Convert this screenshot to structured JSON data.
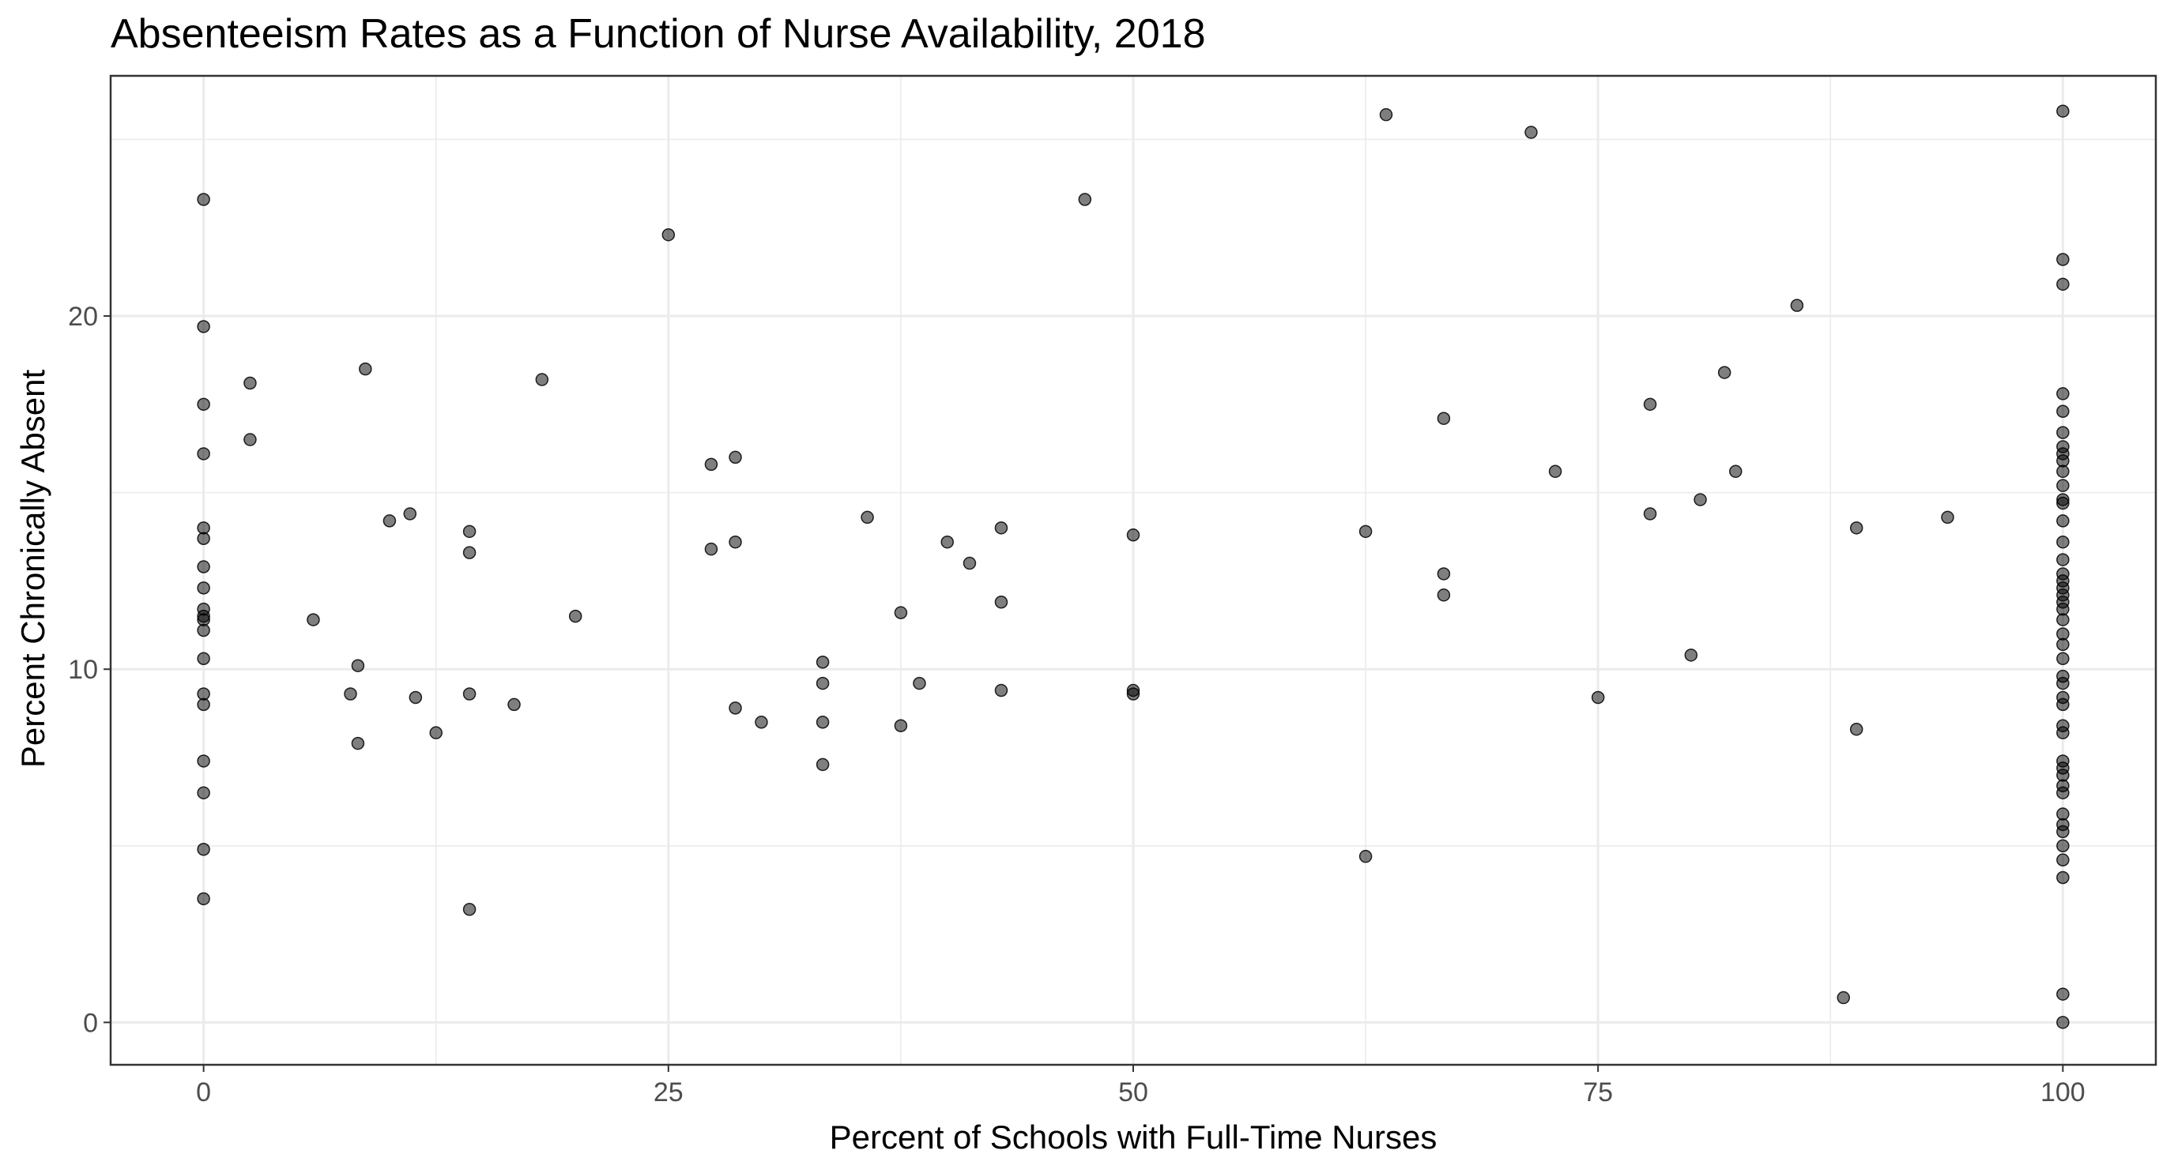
{
  "chart_data": {
    "type": "scatter",
    "title": "Absenteeism Rates as a Function of Nurse Availability, 2018",
    "xlabel": "Percent of Schools with Full-Time Nurses",
    "ylabel": "Percent Chronically Absent",
    "xlim": [
      -5,
      105
    ],
    "ylim": [
      -1.2,
      26.8
    ],
    "x_ticks": [
      0,
      25,
      50,
      75,
      100
    ],
    "x_tick_labels": [
      "0",
      "25",
      "50",
      "75",
      "100"
    ],
    "y_ticks": [
      0,
      10,
      20
    ],
    "y_tick_labels": [
      "0",
      "10",
      "20"
    ],
    "x_minor_grid": [
      12.5,
      37.5,
      62.5,
      87.5
    ],
    "y_minor_grid": [
      5,
      15,
      25
    ],
    "grid": true,
    "legend": "none",
    "point_color": "#000000",
    "point_alpha": 0.5,
    "points": [
      {
        "x": 0,
        "y": 23.3
      },
      {
        "x": 0,
        "y": 19.7
      },
      {
        "x": 0,
        "y": 17.5
      },
      {
        "x": 0,
        "y": 16.1
      },
      {
        "x": 0,
        "y": 14.0
      },
      {
        "x": 0,
        "y": 13.7
      },
      {
        "x": 0,
        "y": 12.9
      },
      {
        "x": 0,
        "y": 12.3
      },
      {
        "x": 0,
        "y": 11.7
      },
      {
        "x": 0,
        "y": 11.5
      },
      {
        "x": 0,
        "y": 11.4
      },
      {
        "x": 0,
        "y": 11.1
      },
      {
        "x": 0,
        "y": 10.3
      },
      {
        "x": 0,
        "y": 9.3
      },
      {
        "x": 0,
        "y": 9.0
      },
      {
        "x": 0,
        "y": 7.4
      },
      {
        "x": 0,
        "y": 6.5
      },
      {
        "x": 0,
        "y": 4.9
      },
      {
        "x": 0,
        "y": 3.5
      },
      {
        "x": 2.5,
        "y": 18.1
      },
      {
        "x": 2.5,
        "y": 16.5
      },
      {
        "x": 5.9,
        "y": 11.4
      },
      {
        "x": 7.9,
        "y": 9.3
      },
      {
        "x": 8.3,
        "y": 10.1
      },
      {
        "x": 8.3,
        "y": 7.9
      },
      {
        "x": 8.7,
        "y": 18.5
      },
      {
        "x": 10.0,
        "y": 14.2
      },
      {
        "x": 11.1,
        "y": 14.4
      },
      {
        "x": 11.4,
        "y": 9.2
      },
      {
        "x": 12.5,
        "y": 8.2
      },
      {
        "x": 14.3,
        "y": 13.9
      },
      {
        "x": 14.3,
        "y": 13.3
      },
      {
        "x": 14.3,
        "y": 9.3
      },
      {
        "x": 14.3,
        "y": 3.2
      },
      {
        "x": 16.7,
        "y": 9.0
      },
      {
        "x": 18.2,
        "y": 18.2
      },
      {
        "x": 20.0,
        "y": 11.5
      },
      {
        "x": 25.0,
        "y": 22.3
      },
      {
        "x": 27.3,
        "y": 15.8
      },
      {
        "x": 27.3,
        "y": 13.4
      },
      {
        "x": 28.6,
        "y": 16.0
      },
      {
        "x": 28.6,
        "y": 13.6
      },
      {
        "x": 28.6,
        "y": 8.9
      },
      {
        "x": 30.0,
        "y": 8.5
      },
      {
        "x": 33.3,
        "y": 10.2
      },
      {
        "x": 33.3,
        "y": 9.6
      },
      {
        "x": 33.3,
        "y": 8.5
      },
      {
        "x": 33.3,
        "y": 7.3
      },
      {
        "x": 35.7,
        "y": 14.3
      },
      {
        "x": 37.5,
        "y": 11.6
      },
      {
        "x": 37.5,
        "y": 8.4
      },
      {
        "x": 38.5,
        "y": 9.6
      },
      {
        "x": 40.0,
        "y": 13.6
      },
      {
        "x": 41.2,
        "y": 13.0
      },
      {
        "x": 42.9,
        "y": 14.0
      },
      {
        "x": 42.9,
        "y": 11.9
      },
      {
        "x": 42.9,
        "y": 9.4
      },
      {
        "x": 47.4,
        "y": 23.3
      },
      {
        "x": 50.0,
        "y": 13.8
      },
      {
        "x": 50.0,
        "y": 9.4
      },
      {
        "x": 50.0,
        "y": 9.3
      },
      {
        "x": 62.5,
        "y": 13.9
      },
      {
        "x": 62.5,
        "y": 4.7
      },
      {
        "x": 63.6,
        "y": 25.7
      },
      {
        "x": 66.7,
        "y": 17.1
      },
      {
        "x": 66.7,
        "y": 12.7
      },
      {
        "x": 66.7,
        "y": 12.1
      },
      {
        "x": 71.4,
        "y": 25.2
      },
      {
        "x": 72.7,
        "y": 15.6
      },
      {
        "x": 75.0,
        "y": 9.2
      },
      {
        "x": 77.8,
        "y": 17.5
      },
      {
        "x": 77.8,
        "y": 14.4
      },
      {
        "x": 80.0,
        "y": 10.4
      },
      {
        "x": 80.5,
        "y": 14.8
      },
      {
        "x": 81.8,
        "y": 18.4
      },
      {
        "x": 82.4,
        "y": 15.6
      },
      {
        "x": 85.7,
        "y": 20.3
      },
      {
        "x": 88.2,
        "y": 0.7
      },
      {
        "x": 88.9,
        "y": 14.0
      },
      {
        "x": 88.9,
        "y": 8.3
      },
      {
        "x": 93.8,
        "y": 14.3
      },
      {
        "x": 100,
        "y": 25.8
      },
      {
        "x": 100,
        "y": 21.6
      },
      {
        "x": 100,
        "y": 20.9
      },
      {
        "x": 100,
        "y": 17.8
      },
      {
        "x": 100,
        "y": 17.3
      },
      {
        "x": 100,
        "y": 16.7
      },
      {
        "x": 100,
        "y": 16.3
      },
      {
        "x": 100,
        "y": 16.1
      },
      {
        "x": 100,
        "y": 15.9
      },
      {
        "x": 100,
        "y": 15.6
      },
      {
        "x": 100,
        "y": 15.2
      },
      {
        "x": 100,
        "y": 14.8
      },
      {
        "x": 100,
        "y": 14.7
      },
      {
        "x": 100,
        "y": 14.2
      },
      {
        "x": 100,
        "y": 13.6
      },
      {
        "x": 100,
        "y": 13.1
      },
      {
        "x": 100,
        "y": 12.7
      },
      {
        "x": 100,
        "y": 12.5
      },
      {
        "x": 100,
        "y": 12.3
      },
      {
        "x": 100,
        "y": 12.1
      },
      {
        "x": 100,
        "y": 11.9
      },
      {
        "x": 100,
        "y": 11.7
      },
      {
        "x": 100,
        "y": 11.4
      },
      {
        "x": 100,
        "y": 11.0
      },
      {
        "x": 100,
        "y": 10.7
      },
      {
        "x": 100,
        "y": 10.3
      },
      {
        "x": 100,
        "y": 9.8
      },
      {
        "x": 100,
        "y": 9.6
      },
      {
        "x": 100,
        "y": 9.2
      },
      {
        "x": 100,
        "y": 9.0
      },
      {
        "x": 100,
        "y": 8.4
      },
      {
        "x": 100,
        "y": 8.2
      },
      {
        "x": 100,
        "y": 7.4
      },
      {
        "x": 100,
        "y": 7.2
      },
      {
        "x": 100,
        "y": 7.0
      },
      {
        "x": 100,
        "y": 6.7
      },
      {
        "x": 100,
        "y": 6.5
      },
      {
        "x": 100,
        "y": 5.9
      },
      {
        "x": 100,
        "y": 5.6
      },
      {
        "x": 100,
        "y": 5.4
      },
      {
        "x": 100,
        "y": 5.0
      },
      {
        "x": 100,
        "y": 4.6
      },
      {
        "x": 100,
        "y": 4.1
      },
      {
        "x": 100,
        "y": 0.8
      },
      {
        "x": 100,
        "y": 0.0
      }
    ]
  }
}
